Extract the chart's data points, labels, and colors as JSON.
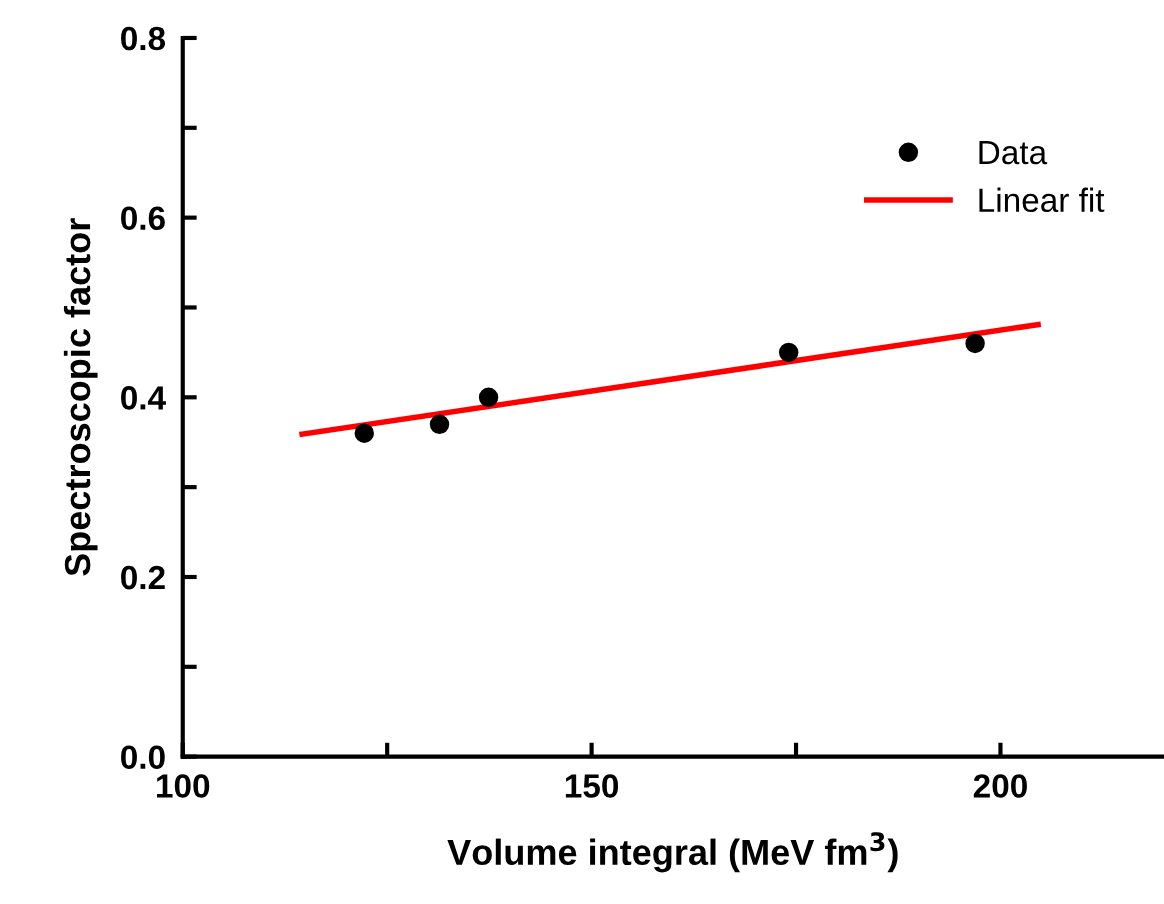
{
  "chart_data": {
    "type": "scatter",
    "xlabel": "Volume integral (MeV fm$^{3}$)",
    "ylabel": "Spectroscopic factor",
    "xlim": [
      100,
      220
    ],
    "ylim": [
      0,
      0.8
    ],
    "xticks": [
      100,
      {
        "value": 125,
        "label": null
      },
      150,
      {
        "value": 175,
        "label": null
      },
      200
    ],
    "yticks": [
      {
        "value": 0,
        "label": "0.0"
      },
      {
        "value": 0.1,
        "label": null
      },
      0.2,
      {
        "value": 0.3,
        "label": null
      },
      0.4,
      {
        "value": 0.5,
        "label": null
      },
      0.6,
      {
        "value": 0.7,
        "label": null
      },
      0.8
    ],
    "legend": "top right",
    "grid": false,
    "series": [
      {
        "name": "Data",
        "color": "#000000",
        "marker": "circle",
        "x": [
          122.2,
          131.4,
          137.4,
          174.1,
          196.9
        ],
        "values": [
          0.36,
          0.37,
          0.4,
          0.45,
          0.46
        ]
      },
      {
        "name": "Linear fit",
        "type": "line",
        "color": "#ff0000",
        "line_style": "solid",
        "x": [
          114.6,
          204.6
        ],
        "values": [
          0.359,
          0.481
        ]
      }
    ]
  }
}
